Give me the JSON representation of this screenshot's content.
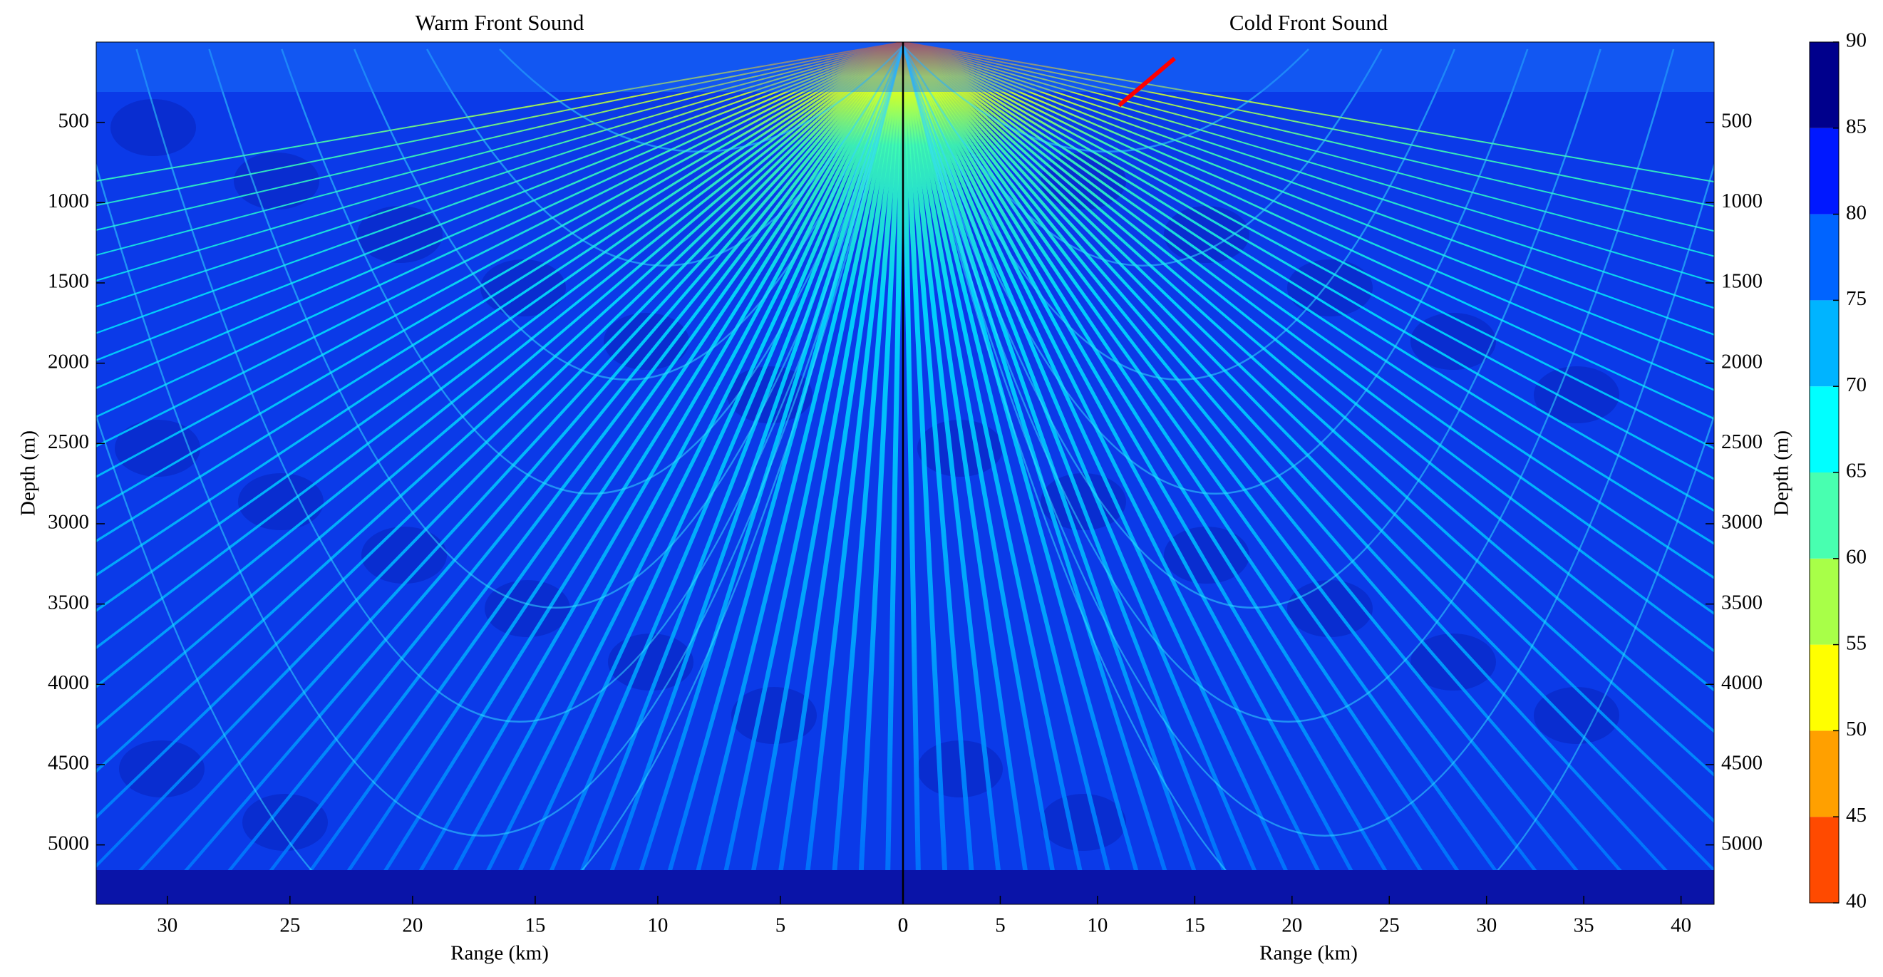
{
  "chart_data": [
    {
      "type": "heatmap",
      "title": "Warm Front Sound",
      "xlabel": "Range (km)",
      "ylabel": "Depth (m)",
      "xlim": [
        32.9,
        0
      ],
      "xticks": [
        30,
        25,
        20,
        15,
        10,
        5,
        0
      ],
      "ylim": [
        0,
        5370
      ],
      "yticks": [
        500,
        1000,
        1500,
        2000,
        2500,
        3000,
        3500,
        4000,
        4500,
        5000
      ],
      "yaxis": "left"
    },
    {
      "type": "heatmap",
      "title": "Cold Front Sound",
      "xlabel": "Range (km)",
      "ylabel": "Depth (m)",
      "xlim": [
        0,
        41.7
      ],
      "xticks": [
        0,
        5,
        10,
        15,
        20,
        25,
        30,
        35,
        40
      ],
      "ylim": [
        0,
        5370
      ],
      "yticks": [
        500,
        1000,
        1500,
        2000,
        2500,
        3000,
        3500,
        4000,
        4500,
        5000
      ],
      "yaxis": "right"
    },
    {
      "type": "colorbar",
      "zlim": [
        40,
        90
      ],
      "zticks": [
        40,
        45,
        50,
        55,
        60,
        65,
        70,
        75,
        80,
        85,
        90
      ],
      "colors": [
        "#ff4a00",
        "#ffa000",
        "#ffff00",
        "#a8ff48",
        "#48ffb0",
        "#00ffff",
        "#00b4ff",
        "#0064ff",
        "#0018ff",
        "#00008c"
      ]
    }
  ]
}
